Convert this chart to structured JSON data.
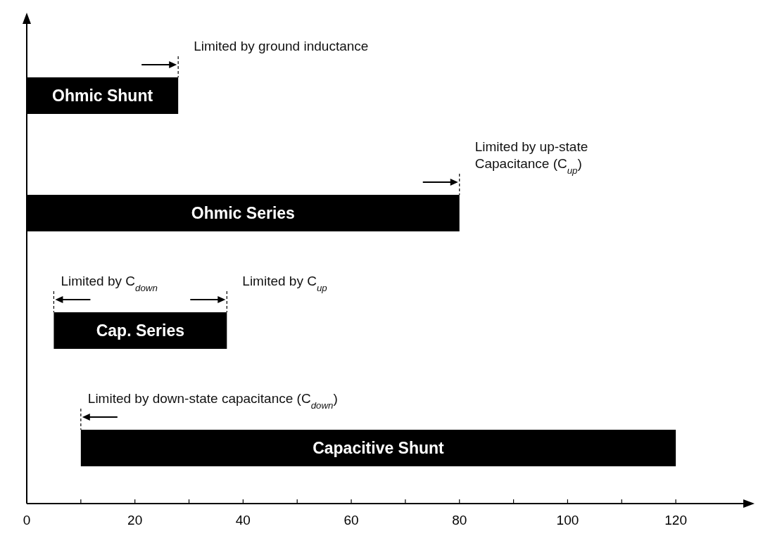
{
  "chart_data": {
    "type": "bar",
    "orientation": "horizontal",
    "categories": [
      "Ohmic Shunt",
      "Ohmic Series",
      "Cap. Series",
      "Capacitive Shunt"
    ],
    "base": [
      0,
      0,
      5,
      10
    ],
    "values": [
      28,
      80,
      32,
      110
    ],
    "color": "#000000",
    "xlim": [
      0,
      133
    ],
    "xticks": [
      0,
      {
        "value": 10,
        "label": null
      },
      20,
      {
        "value": 30,
        "label": null
      },
      40,
      {
        "value": 50,
        "label": null
      },
      60,
      {
        "value": 70,
        "label": null
      },
      80,
      {
        "value": 90,
        "label": null
      },
      100,
      {
        "value": 110,
        "label": null
      },
      120
    ],
    "annotations": [
      {
        "text": "Limited by ground inductance",
        "x": 28,
        "y": "Ohmic Shunt"
      },
      {
        "text": "Limited by up-state\nCapacitance (C$_{up}$)",
        "x": 80,
        "y": "Ohmic Series"
      },
      {
        "text": "Limited by C$_{down}$",
        "x": 5,
        "y": "Cap. Series"
      },
      {
        "text": "Limited by C$_{up}$",
        "x": 37,
        "y": "Cap. Series"
      },
      {
        "text": "Limited by down-state capacitance (C$_{down}$)",
        "x": 10,
        "y": "Capacitive Shunt"
      }
    ]
  }
}
